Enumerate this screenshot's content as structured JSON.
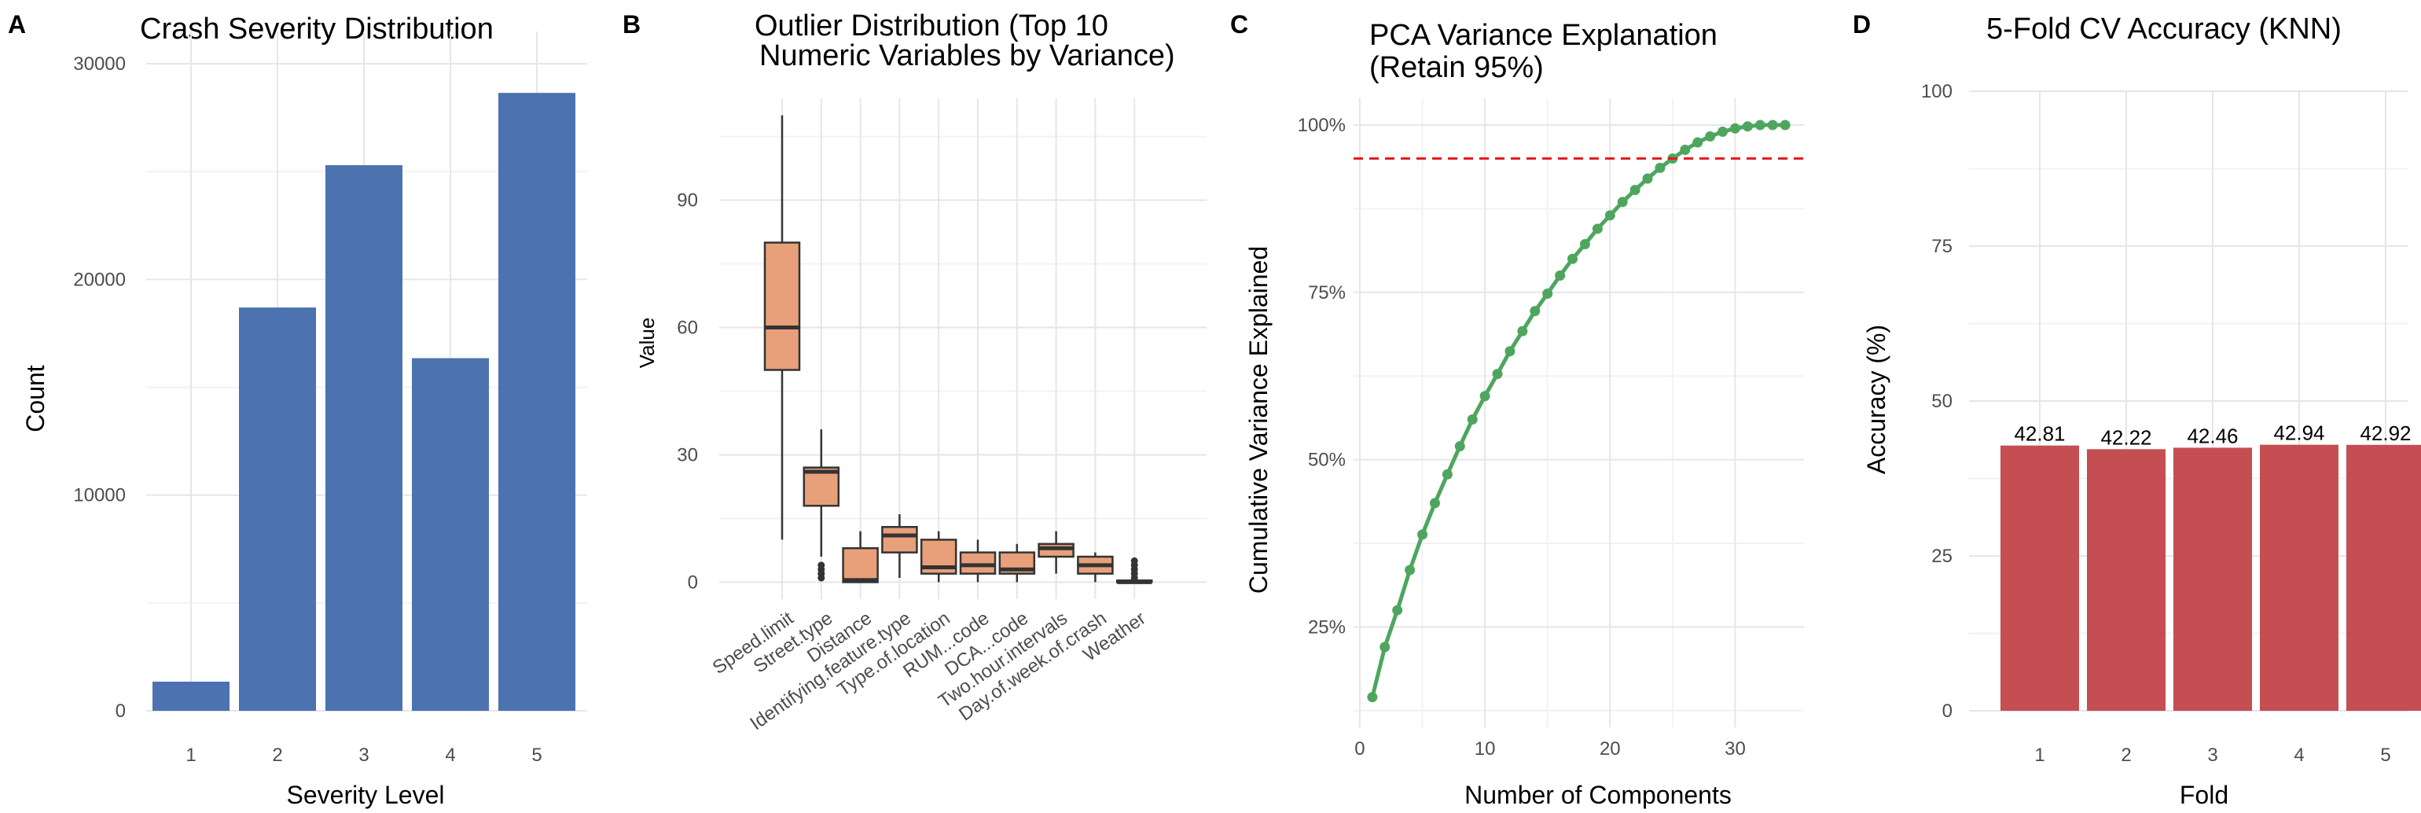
{
  "panels": [
    {
      "letter": "A"
    },
    {
      "letter": "B"
    },
    {
      "letter": "C"
    },
    {
      "letter": "D"
    }
  ],
  "chart_data": [
    {
      "type": "bar",
      "title": "Crash Severity Distribution",
      "xlabel": "Severity Level",
      "ylabel": "Count",
      "categories": [
        "1",
        "2",
        "3",
        "4",
        "5"
      ],
      "values": [
        1350,
        18700,
        25300,
        16350,
        28650
      ],
      "ylim": [
        0,
        31500
      ],
      "yticks": [
        0,
        10000,
        20000,
        30000
      ],
      "color": "#4c72b0",
      "grid": true
    },
    {
      "type": "box",
      "title": "Outlier Distribution (Top 10",
      "subtitle": "Numeric Variables by Variance)",
      "xlabel": "",
      "ylabel": "Value",
      "categories": [
        "Speed.limit",
        "Street.type",
        "Distance",
        "Identifying.feature.type",
        "Type.of.location",
        "RUM...code",
        "DCA...code",
        "Two.hour.intervals",
        "Day.of.week.of.crash",
        "Weather"
      ],
      "boxes": [
        {
          "min": 10,
          "q1": 50,
          "median": 60,
          "q3": 80,
          "max": 110,
          "outliers": []
        },
        {
          "min": 6,
          "q1": 18,
          "median": 26,
          "q3": 27,
          "max": 36,
          "outliers": [
            1,
            2,
            3,
            4
          ]
        },
        {
          "min": 0,
          "q1": 0,
          "median": 0.5,
          "q3": 8,
          "max": 12,
          "outliers": []
        },
        {
          "min": 1,
          "q1": 7,
          "median": 11,
          "q3": 13,
          "max": 16,
          "outliers": []
        },
        {
          "min": 0,
          "q1": 2,
          "median": 3.5,
          "q3": 10,
          "max": 12,
          "outliers": []
        },
        {
          "min": 0,
          "q1": 2,
          "median": 4,
          "q3": 7,
          "max": 10,
          "outliers": []
        },
        {
          "min": 0,
          "q1": 2,
          "median": 3,
          "q3": 7,
          "max": 9,
          "outliers": []
        },
        {
          "min": 2,
          "q1": 6,
          "median": 8,
          "q3": 9,
          "max": 12,
          "outliers": []
        },
        {
          "min": 0,
          "q1": 2,
          "median": 4,
          "q3": 6,
          "max": 7,
          "outliers": []
        },
        {
          "min": 0,
          "q1": 0,
          "median": 0,
          "q3": 0.4,
          "max": 0.8,
          "outliers": [
            1,
            2,
            3,
            4,
            5
          ]
        }
      ],
      "ylim": [
        -4,
        114
      ],
      "yticks": [
        0,
        30,
        60,
        90
      ],
      "color": "#e8a07a",
      "grid": true
    },
    {
      "type": "line",
      "title": "PCA Variance Explanation",
      "subtitle": "(Retain 95%)",
      "xlabel": "Number of Components",
      "ylabel": "Cumulative Variance Explained",
      "x": [
        1,
        2,
        3,
        4,
        5,
        6,
        7,
        8,
        9,
        10,
        11,
        12,
        13,
        14,
        15,
        16,
        17,
        18,
        19,
        20,
        21,
        22,
        23,
        24,
        25,
        26,
        27,
        28,
        29,
        30,
        31,
        32,
        33,
        34
      ],
      "y": [
        0.145,
        0.22,
        0.275,
        0.335,
        0.388,
        0.435,
        0.478,
        0.52,
        0.56,
        0.595,
        0.628,
        0.662,
        0.692,
        0.722,
        0.748,
        0.775,
        0.8,
        0.822,
        0.845,
        0.865,
        0.885,
        0.903,
        0.92,
        0.936,
        0.95,
        0.963,
        0.974,
        0.983,
        0.99,
        0.995,
        0.998,
        1.0,
        1.0,
        1.0
      ],
      "threshold": 0.95,
      "xlim": [
        -0.5,
        35.5
      ],
      "ylim": [
        0.1,
        1.04
      ],
      "xticks": [
        0,
        10,
        20,
        30
      ],
      "yticks": [
        0.25,
        0.5,
        0.75,
        1.0
      ],
      "ytick_labels": [
        "25%",
        "50%",
        "75%",
        "100%"
      ],
      "color": "#4ea65e",
      "threshold_color": "#e8161a",
      "grid": true
    },
    {
      "type": "bar",
      "title": "5-Fold CV Accuracy (KNN)",
      "xlabel": "Fold",
      "ylabel": "Accuracy (%)",
      "categories": [
        "1",
        "2",
        "3",
        "4",
        "5"
      ],
      "values": [
        42.81,
        42.22,
        42.46,
        42.94,
        42.92
      ],
      "data_labels": [
        "42.81",
        "42.22",
        "42.46",
        "42.94",
        "42.92"
      ],
      "ylim": [
        0,
        100
      ],
      "yticks": [
        0,
        25,
        50,
        75,
        100
      ],
      "color": "#c44e52",
      "grid": true
    }
  ]
}
